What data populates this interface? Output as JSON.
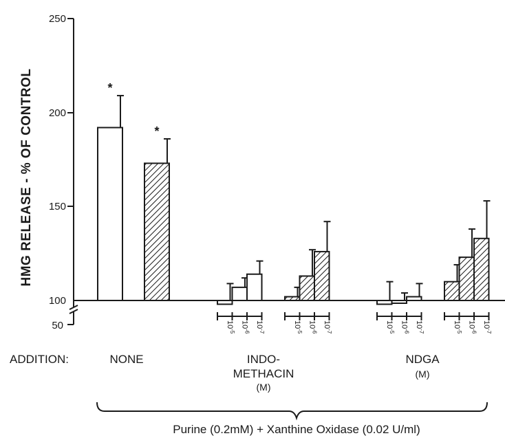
{
  "chart_data": {
    "type": "bar",
    "ylabel": "HMG RELEASE - % OF CONTROL",
    "yticks": [
      250,
      200,
      150,
      100,
      50
    ],
    "ylim": [
      100,
      250
    ],
    "axis_break": true,
    "grid": false,
    "legend": "none",
    "addition_label": "ADDITION:",
    "footer": "Purine (0.2mM) + Xanthine Oxidase (0.02 U/ml)",
    "significance_marker": "*",
    "fill_styles": {
      "open": "#ffffff",
      "hatched": "diagonal-hatch"
    },
    "groups": [
      {
        "label_lines": [
          "NONE"
        ],
        "bars": [
          {
            "fill": "open",
            "value": 192,
            "error": 17,
            "significant": true
          },
          {
            "fill": "hatched",
            "value": 173,
            "error": 13,
            "significant": true
          }
        ]
      },
      {
        "label_lines": [
          "INDO-",
          "METHACIN",
          "(M)"
        ],
        "conc_base": "10",
        "subgroups": [
          {
            "fill": "open",
            "exponents": [
              "-5",
              "-6",
              "-7"
            ],
            "bars": [
              {
                "value": 98,
                "error": 9
              },
              {
                "value": 107,
                "error": 5
              },
              {
                "value": 114,
                "error": 7
              }
            ]
          },
          {
            "fill": "hatched",
            "exponents": [
              "-5",
              "-6",
              "-7"
            ],
            "bars": [
              {
                "value": 102,
                "error": 5
              },
              {
                "value": 113,
                "error": 14
              },
              {
                "value": 126,
                "error": 16
              }
            ]
          }
        ]
      },
      {
        "label_lines": [
          "NDGA",
          "(M)"
        ],
        "conc_base": "10",
        "subgroups": [
          {
            "fill": "open",
            "exponents": [
              "-5",
              "-6",
              "-7"
            ],
            "bars": [
              {
                "value": 98,
                "error": 10
              },
              {
                "value": 100,
                "error": 4
              },
              {
                "value": 102,
                "error": 7
              }
            ]
          },
          {
            "fill": "hatched",
            "exponents": [
              "-5",
              "-6",
              "-7"
            ],
            "bars": [
              {
                "value": 110,
                "error": 9
              },
              {
                "value": 123,
                "error": 15
              },
              {
                "value": 133,
                "error": 20
              }
            ]
          }
        ]
      }
    ]
  }
}
